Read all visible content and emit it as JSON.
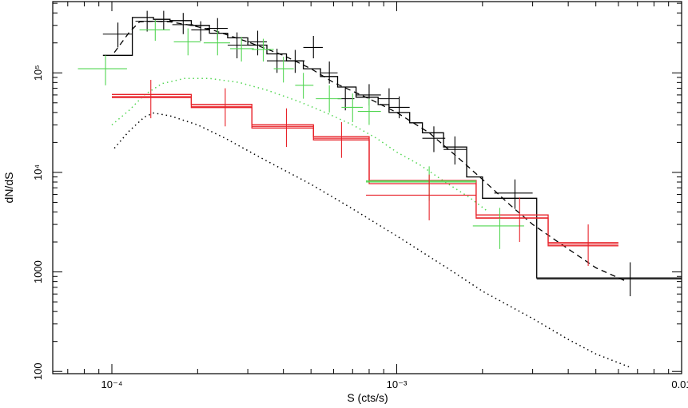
{
  "chart_data": {
    "type": "scatter",
    "title": "",
    "xlabel": "S (cts/s)",
    "ylabel": "dN/dS",
    "xscale": "log",
    "yscale": "log",
    "xlim": [
      6.2e-05,
      0.01
    ],
    "ylim": [
      95,
      520000
    ],
    "grid": false,
    "legend": "none",
    "x_ticks": [
      {
        "value": 0.0001,
        "label": "10⁻⁴"
      },
      {
        "value": 0.001,
        "label": "10⁻³"
      },
      {
        "value": 0.01,
        "label": "0.01"
      }
    ],
    "y_ticks": [
      {
        "value": 100,
        "label": "100"
      },
      {
        "value": 1000,
        "label": "1000"
      },
      {
        "value": 10000,
        "label": "10⁴"
      },
      {
        "value": 100000,
        "label": "10⁵"
      }
    ],
    "series": [
      {
        "color": "#000000",
        "style": "crosses",
        "points": [
          {
            "x": 0.000105,
            "xlo": 9.3e-05,
            "xhi": 0.000118,
            "y": 245000,
            "ylo": 180000,
            "yhi": 320000
          },
          {
            "x": 0.000133,
            "xlo": 0.000121,
            "xhi": 0.000145,
            "y": 330000,
            "ylo": 260000,
            "yhi": 420000
          },
          {
            "x": 0.000152,
            "xlo": 0.00014,
            "xhi": 0.000164,
            "y": 330000,
            "ylo": 270000,
            "yhi": 420000
          },
          {
            "x": 0.000178,
            "xlo": 0.000163,
            "xhi": 0.000193,
            "y": 305000,
            "ylo": 245000,
            "yhi": 400000
          },
          {
            "x": 0.000205,
            "xlo": 0.00019,
            "xhi": 0.00022,
            "y": 270000,
            "ylo": 210000,
            "yhi": 330000
          },
          {
            "x": 0.000235,
            "xlo": 0.000215,
            "xhi": 0.000255,
            "y": 280000,
            "ylo": 215000,
            "yhi": 355000
          },
          {
            "x": 0.000275,
            "xlo": 0.000255,
            "xhi": 0.0003,
            "y": 190000,
            "ylo": 140000,
            "yhi": 255000
          },
          {
            "x": 0.000325,
            "xlo": 0.0003,
            "xhi": 0.00035,
            "y": 205000,
            "ylo": 150000,
            "yhi": 265000
          },
          {
            "x": 0.00038,
            "xlo": 0.00035,
            "xhi": 0.000415,
            "y": 132000,
            "ylo": 100000,
            "yhi": 175000
          },
          {
            "x": 0.00044,
            "xlo": 0.00041,
            "xhi": 0.000475,
            "y": 132000,
            "ylo": 100000,
            "yhi": 170000
          },
          {
            "x": 0.00051,
            "xlo": 0.00047,
            "xhi": 0.00055,
            "y": 180000,
            "ylo": 140000,
            "yhi": 235000
          },
          {
            "x": 0.00058,
            "xlo": 0.00054,
            "xhi": 0.00062,
            "y": 100000,
            "ylo": 78000,
            "yhi": 130000
          },
          {
            "x": 0.00066,
            "xlo": 0.00062,
            "xhi": 0.00071,
            "y": 55000,
            "ylo": 42000,
            "yhi": 72000
          },
          {
            "x": 0.0008,
            "xlo": 0.00072,
            "xhi": 0.00088,
            "y": 60000,
            "ylo": 47000,
            "yhi": 77000
          },
          {
            "x": 0.00094,
            "xlo": 0.00086,
            "xhi": 0.00102,
            "y": 55000,
            "ylo": 40000,
            "yhi": 70000
          },
          {
            "x": 0.00102,
            "xlo": 0.00094,
            "xhi": 0.00111,
            "y": 45000,
            "ylo": 35000,
            "yhi": 58000
          },
          {
            "x": 0.00135,
            "xlo": 0.00123,
            "xhi": 0.00148,
            "y": 22000,
            "ylo": 16000,
            "yhi": 29000
          },
          {
            "x": 0.0016,
            "xlo": 0.00146,
            "xhi": 0.00176,
            "y": 17000,
            "ylo": 12000,
            "yhi": 23000
          },
          {
            "x": 0.0026,
            "xlo": 0.0022,
            "xhi": 0.003,
            "y": 6200,
            "ylo": 4300,
            "yhi": 8500
          },
          {
            "x": 0.0066,
            "xlo": 0.0031,
            "xhi": 0.01,
            "y": 850,
            "ylo": 570,
            "yhi": 1250
          }
        ]
      },
      {
        "color": "#52d652",
        "style": "crosses",
        "points": [
          {
            "x": 9.5e-05,
            "xlo": 7.6e-05,
            "xhi": 0.000113,
            "y": 110000,
            "ylo": 75000,
            "yhi": 150000
          },
          {
            "x": 0.000142,
            "xlo": 0.000125,
            "xhi": 0.00016,
            "y": 270000,
            "ylo": 210000,
            "yhi": 340000
          },
          {
            "x": 0.000185,
            "xlo": 0.000165,
            "xhi": 0.000205,
            "y": 205000,
            "ylo": 150000,
            "yhi": 280000
          },
          {
            "x": 0.000235,
            "xlo": 0.00021,
            "xhi": 0.00026,
            "y": 200000,
            "ylo": 150000,
            "yhi": 270000
          },
          {
            "x": 0.000285,
            "xlo": 0.00026,
            "xhi": 0.000315,
            "y": 175000,
            "ylo": 130000,
            "yhi": 230000
          },
          {
            "x": 0.00034,
            "xlo": 0.00031,
            "xhi": 0.00037,
            "y": 172000,
            "ylo": 130000,
            "yhi": 220000
          },
          {
            "x": 0.0004,
            "xlo": 0.00037,
            "xhi": 0.000435,
            "y": 110000,
            "ylo": 80000,
            "yhi": 145000
          },
          {
            "x": 0.00047,
            "xlo": 0.00044,
            "xhi": 0.00051,
            "y": 75000,
            "ylo": 55000,
            "yhi": 100000
          },
          {
            "x": 0.00058,
            "xlo": 0.00052,
            "xhi": 0.00064,
            "y": 55000,
            "ylo": 40000,
            "yhi": 75000
          },
          {
            "x": 0.0007,
            "xlo": 0.00064,
            "xhi": 0.00076,
            "y": 45000,
            "ylo": 32000,
            "yhi": 62000
          },
          {
            "x": 0.0008,
            "xlo": 0.00073,
            "xhi": 0.00088,
            "y": 41000,
            "ylo": 30000,
            "yhi": 55000
          },
          {
            "x": 0.0013,
            "xlo": 0.00078,
            "xhi": 0.0019,
            "y": 8000,
            "ylo": 5200,
            "yhi": 11500
          },
          {
            "x": 0.0023,
            "xlo": 0.00185,
            "xhi": 0.0028,
            "y": 2900,
            "ylo": 1700,
            "yhi": 4400
          }
        ]
      },
      {
        "color": "#e8232a",
        "style": "crosses",
        "points": [
          {
            "x": 0.000137,
            "xlo": 0.0001,
            "xhi": 0.00019,
            "y": 58000,
            "ylo": 35000,
            "yhi": 85000
          },
          {
            "x": 0.00025,
            "xlo": 0.00019,
            "xhi": 0.00031,
            "y": 46000,
            "ylo": 29000,
            "yhi": 70000
          },
          {
            "x": 0.00041,
            "xlo": 0.00031,
            "xhi": 0.00051,
            "y": 29000,
            "ylo": 18000,
            "yhi": 44000
          },
          {
            "x": 0.00064,
            "xlo": 0.00051,
            "xhi": 0.0008,
            "y": 22000,
            "ylo": 14000,
            "yhi": 32000
          },
          {
            "x": 0.0013,
            "xlo": 0.00078,
            "xhi": 0.0019,
            "y": 5900,
            "ylo": 3300,
            "yhi": 9500
          },
          {
            "x": 0.0027,
            "xlo": 0.0019,
            "xhi": 0.0034,
            "y": 3500,
            "ylo": 2000,
            "yhi": 5600
          },
          {
            "x": 0.0047,
            "xlo": 0.0034,
            "xhi": 0.006,
            "y": 1900,
            "ylo": 1150,
            "yhi": 3000
          }
        ]
      }
    ],
    "model_curves": [
      {
        "color": "#000000",
        "style": "solid-step",
        "points": [
          [
            9.3e-05,
            150000
          ],
          [
            0.000118,
            150000
          ],
          [
            0.000118,
            360000
          ],
          [
            0.00014,
            360000
          ],
          [
            0.00014,
            345000
          ],
          [
            0.00016,
            345000
          ],
          [
            0.00016,
            335000
          ],
          [
            0.00019,
            335000
          ],
          [
            0.00019,
            300000
          ],
          [
            0.00022,
            300000
          ],
          [
            0.00022,
            250000
          ],
          [
            0.000255,
            250000
          ],
          [
            0.000255,
            225000
          ],
          [
            0.0003,
            225000
          ],
          [
            0.0003,
            190000
          ],
          [
            0.00035,
            190000
          ],
          [
            0.00035,
            155000
          ],
          [
            0.00041,
            155000
          ],
          [
            0.00041,
            132000
          ],
          [
            0.00047,
            132000
          ],
          [
            0.00047,
            110000
          ],
          [
            0.00054,
            110000
          ],
          [
            0.00054,
            92000
          ],
          [
            0.00062,
            92000
          ],
          [
            0.00062,
            72000
          ],
          [
            0.00072,
            72000
          ],
          [
            0.00072,
            57000
          ],
          [
            0.00086,
            57000
          ],
          [
            0.00086,
            48000
          ],
          [
            0.00094,
            48000
          ],
          [
            0.00094,
            40000
          ],
          [
            0.00111,
            40000
          ],
          [
            0.00111,
            31500
          ],
          [
            0.00123,
            31500
          ],
          [
            0.00123,
            25000
          ],
          [
            0.00146,
            25000
          ],
          [
            0.00146,
            18000
          ],
          [
            0.00176,
            18000
          ],
          [
            0.00176,
            9000
          ],
          [
            0.002,
            9000
          ],
          [
            0.002,
            5500
          ],
          [
            0.0031,
            5500
          ],
          [
            0.0031,
            870
          ],
          [
            0.01,
            870
          ]
        ]
      },
      {
        "color": "#000000",
        "style": "dashed",
        "points": [
          [
            0.000102,
            160000
          ],
          [
            0.000115,
            255000
          ],
          [
            0.000125,
            325000
          ],
          [
            0.00014,
            330000
          ],
          [
            0.00016,
            325000
          ],
          [
            0.00019,
            300000
          ],
          [
            0.00023,
            265000
          ],
          [
            0.0003,
            205000
          ],
          [
            0.0004,
            150000
          ],
          [
            0.0005,
            110000
          ],
          [
            0.0006,
            80000
          ],
          [
            0.0008,
            55000
          ],
          [
            0.001,
            40000
          ],
          [
            0.0013,
            25000
          ],
          [
            0.0016,
            15000
          ],
          [
            0.002,
            8500
          ],
          [
            0.0025,
            4700
          ],
          [
            0.003,
            3000
          ],
          [
            0.004,
            1700
          ],
          [
            0.005,
            1100
          ],
          [
            0.0063,
            820
          ]
        ]
      },
      {
        "color": "#52d652",
        "style": "dotted",
        "points": [
          [
            0.0001,
            30000
          ],
          [
            0.000115,
            42000
          ],
          [
            0.00013,
            60000
          ],
          [
            0.00015,
            78000
          ],
          [
            0.00018,
            88000
          ],
          [
            0.00022,
            88000
          ],
          [
            0.00028,
            80000
          ],
          [
            0.00035,
            67000
          ],
          [
            0.00045,
            52000
          ],
          [
            0.00055,
            41000
          ],
          [
            0.0007,
            30000
          ],
          [
            0.00085,
            22000
          ],
          [
            0.001,
            16000
          ],
          [
            0.0012,
            12000
          ],
          [
            0.0015,
            7800
          ],
          [
            0.0018,
            5600
          ],
          [
            0.0021,
            4000
          ]
        ]
      },
      {
        "color": "#000000",
        "style": "dotted",
        "points": [
          [
            0.000102,
            17500
          ],
          [
            0.000115,
            26000
          ],
          [
            0.00013,
            36000
          ],
          [
            0.00014,
            39500
          ],
          [
            0.00016,
            37000
          ],
          [
            0.0002,
            30000
          ],
          [
            0.00025,
            22000
          ],
          [
            0.00035,
            13000
          ],
          [
            0.0005,
            7600
          ],
          [
            0.0007,
            4300
          ],
          [
            0.001,
            2300
          ],
          [
            0.0015,
            1100
          ],
          [
            0.002,
            640
          ],
          [
            0.003,
            340
          ],
          [
            0.004,
            210
          ],
          [
            0.005,
            150
          ],
          [
            0.0066,
            110
          ]
        ]
      },
      {
        "color": "#e8232a",
        "style": "double-step",
        "points": [
          [
            0.0001,
            58500
          ],
          [
            0.00019,
            58500
          ],
          [
            0.00019,
            46500
          ],
          [
            0.00031,
            46500
          ],
          [
            0.00031,
            29000
          ],
          [
            0.00051,
            29000
          ],
          [
            0.00051,
            22000
          ],
          [
            0.0008,
            22000
          ],
          [
            0.0008,
            8000
          ],
          [
            0.0019,
            8000
          ],
          [
            0.0019,
            3600
          ],
          [
            0.0034,
            3600
          ],
          [
            0.0034,
            1900
          ],
          [
            0.006,
            1900
          ]
        ]
      },
      {
        "color": "#52d652",
        "style": "solid-step",
        "points": [
          [
            0.00078,
            8200
          ],
          [
            0.0019,
            8200
          ]
        ]
      }
    ]
  }
}
